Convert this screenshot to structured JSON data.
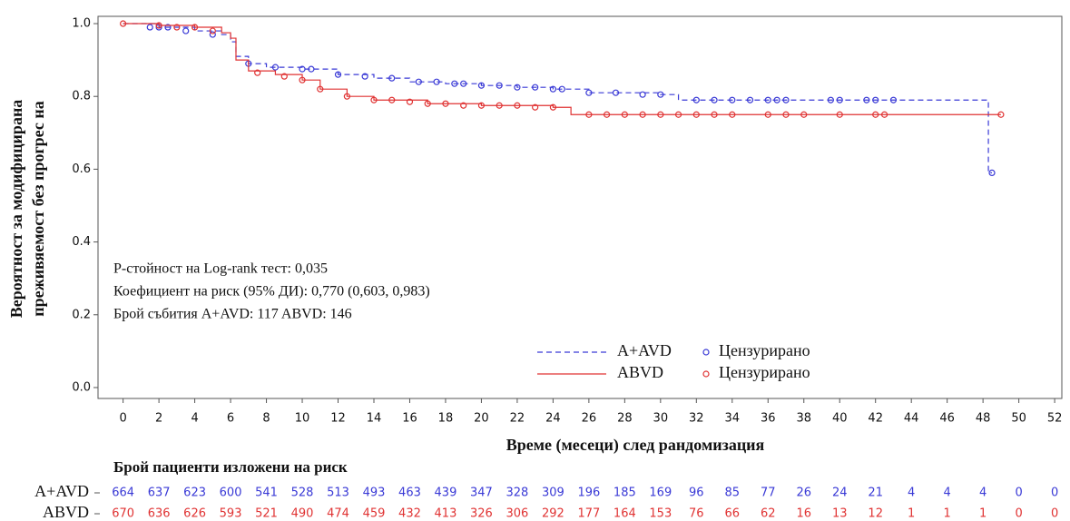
{
  "chart_data": {
    "type": "kaplan-meier",
    "ylabel": [
      "Вероятност за модифицирана",
      "преживяемост без прогрес на"
    ],
    "xlabel": "Време (месеци) след рандомизация",
    "annotations": [
      "P-стойност на Log-rank тест: 0,035",
      "Коефициент на риск (95% ДИ): 0,770 (0,603, 0,983)",
      "Брой събития A+AVD: 117  ABVD: 146"
    ],
    "censored_label": "Цензурирано",
    "xlim": [
      -1.4,
      52.4
    ],
    "ylim": [
      -0.03,
      1.02
    ],
    "xticks": [
      0,
      2,
      4,
      6,
      8,
      10,
      12,
      14,
      16,
      18,
      20,
      22,
      24,
      26,
      28,
      30,
      32,
      34,
      36,
      38,
      40,
      42,
      44,
      46,
      48,
      50,
      52
    ],
    "yticks": [
      {
        "value": 0,
        "label": "0.0"
      },
      {
        "value": 0.2,
        "label": "0.2"
      },
      {
        "value": 0.4,
        "label": "0.4"
      },
      {
        "value": 0.6,
        "label": "0.6"
      },
      {
        "value": 0.8,
        "label": "0.8"
      },
      {
        "value": 1,
        "label": "1.0"
      }
    ],
    "series": [
      {
        "name": "A+AVD",
        "color": "#3a3ad6",
        "linestyle": "dashed",
        "x": [
          0,
          2,
          4,
          5.5,
          6,
          6.3,
          7,
          8,
          10,
          12,
          14,
          16,
          18,
          20,
          22,
          24,
          26,
          30,
          31,
          48.3,
          48.5
        ],
        "values": [
          1,
          0.99,
          0.98,
          0.97,
          0.95,
          0.91,
          0.89,
          0.88,
          0.875,
          0.86,
          0.85,
          0.84,
          0.835,
          0.83,
          0.825,
          0.82,
          0.81,
          0.805,
          0.79,
          0.59,
          0.59
        ],
        "censored_x": [
          1.5,
          2,
          2.5,
          3.5,
          5,
          7,
          8.5,
          10,
          10.5,
          12,
          13.5,
          15,
          16.5,
          17.5,
          18.5,
          19,
          20,
          21,
          22,
          23,
          24,
          24.5,
          26,
          27.5,
          29,
          30,
          32,
          33,
          34,
          35,
          36,
          36.5,
          37,
          39.5,
          40,
          41.5,
          42,
          43,
          48.5
        ],
        "censored_values": [
          0.99,
          0.99,
          0.99,
          0.98,
          0.97,
          0.89,
          0.88,
          0.875,
          0.875,
          0.86,
          0.855,
          0.85,
          0.84,
          0.84,
          0.835,
          0.835,
          0.83,
          0.83,
          0.825,
          0.825,
          0.82,
          0.82,
          0.81,
          0.81,
          0.805,
          0.805,
          0.79,
          0.79,
          0.79,
          0.79,
          0.79,
          0.79,
          0.79,
          0.79,
          0.79,
          0.79,
          0.79,
          0.79,
          0.59
        ],
        "at_risk": [
          664,
          637,
          623,
          600,
          541,
          528,
          513,
          493,
          463,
          439,
          347,
          328,
          309,
          196,
          185,
          169,
          96,
          85,
          77,
          26,
          24,
          21,
          4,
          4,
          4,
          0,
          0
        ]
      },
      {
        "name": "ABVD",
        "color": "#e03333",
        "linestyle": "solid",
        "x": [
          0,
          2,
          4,
          5.5,
          6,
          6.3,
          7,
          8.5,
          10,
          11,
          12.5,
          14,
          17,
          20,
          24,
          25,
          49
        ],
        "values": [
          1,
          0.995,
          0.99,
          0.975,
          0.96,
          0.9,
          0.87,
          0.86,
          0.845,
          0.82,
          0.8,
          0.79,
          0.78,
          0.775,
          0.77,
          0.75,
          0.75
        ],
        "censored_x": [
          0,
          2,
          3,
          4,
          5,
          7.5,
          9,
          10,
          11,
          12.5,
          14,
          15,
          16,
          17,
          18,
          19,
          20,
          21,
          22,
          23,
          24,
          26,
          27,
          28,
          29,
          30,
          31,
          32,
          33,
          34,
          36,
          37,
          38,
          40,
          42,
          42.5,
          49
        ],
        "censored_values": [
          1,
          0.995,
          0.99,
          0.99,
          0.98,
          0.865,
          0.855,
          0.845,
          0.82,
          0.8,
          0.79,
          0.79,
          0.785,
          0.78,
          0.78,
          0.775,
          0.775,
          0.775,
          0.775,
          0.77,
          0.77,
          0.75,
          0.75,
          0.75,
          0.75,
          0.75,
          0.75,
          0.75,
          0.75,
          0.75,
          0.75,
          0.75,
          0.75,
          0.75,
          0.75,
          0.75,
          0.75
        ],
        "at_risk": [
          670,
          636,
          626,
          593,
          521,
          490,
          474,
          459,
          432,
          413,
          326,
          306,
          292,
          177,
          164,
          153,
          76,
          66,
          62,
          16,
          13,
          12,
          1,
          1,
          1,
          0,
          0
        ]
      }
    ],
    "risk_table_title": "Брой пациенти изложени на риск"
  }
}
